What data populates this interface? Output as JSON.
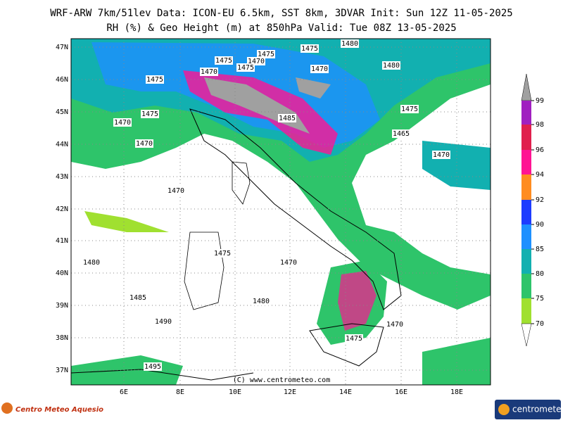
{
  "header": {
    "line1": "WRF-ARW 7km/51lev  Data: ICON-EU 6.5km, SST 8km, 3DVAR  Init: Sun 12Z 11-05-2025",
    "line2": "RH (%) & Geo Height (m) at 850hPa  Valid: Tue 08Z 13-05-2025"
  },
  "map": {
    "lat_labels": [
      "47N",
      "46N",
      "45N",
      "44N",
      "43N",
      "42N",
      "41N",
      "40N",
      "39N",
      "38N",
      "37N"
    ],
    "lon_labels": [
      "6E",
      "8E",
      "10E",
      "12E",
      "14E",
      "16E",
      "18E"
    ],
    "contour_labels": [
      "1475",
      "1475",
      "1470",
      "1475",
      "1475",
      "1480",
      "1470",
      "1470",
      "1480",
      "1475",
      "1475",
      "1470",
      "1475",
      "1485",
      "1465",
      "1470",
      "1470",
      "1470",
      "1475",
      "1470",
      "1480",
      "1485",
      "1480",
      "1490",
      "1470",
      "1475",
      "1495"
    ],
    "credit": "(C) www.centrometeo.com"
  },
  "colorbar": {
    "labels": [
      "99",
      "98",
      "96",
      "94",
      "92",
      "90",
      "85",
      "80",
      "75",
      "70"
    ]
  },
  "logos": {
    "left": "Centro Meteo Aquesio",
    "right": "centrometeo"
  }
}
